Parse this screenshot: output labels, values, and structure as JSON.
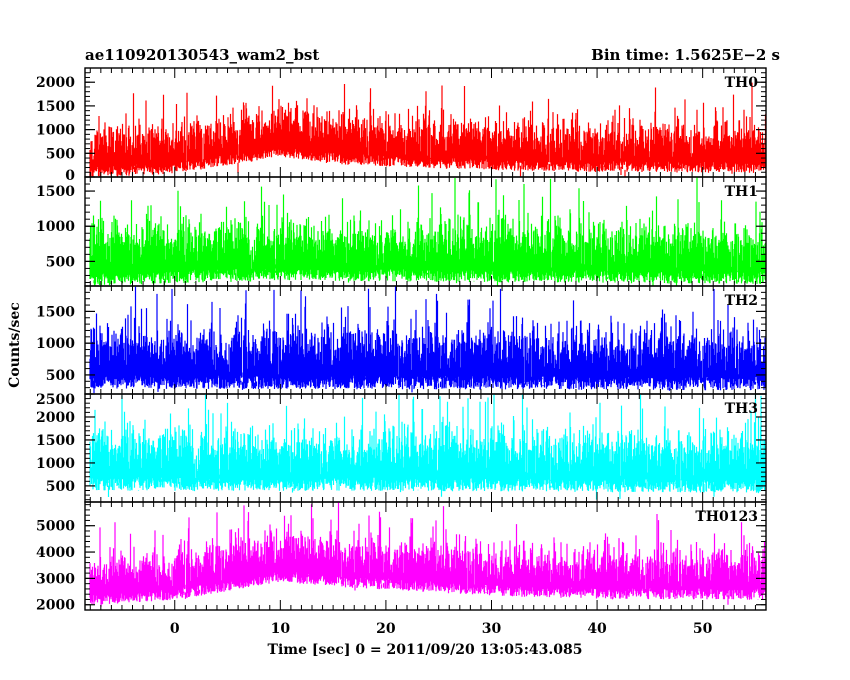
{
  "header": {
    "source_name": "ae110920130543_wam2_bst",
    "bin_time": "Bin time: 1.5625E−2 s"
  },
  "chart_data": {
    "type": "line",
    "xlabel": "Time [sec] 0 = 2011/09/20 13:05:43.085",
    "ylabel": "Counts/sec",
    "xlim": [
      -8.5,
      56
    ],
    "xticks": [
      0,
      10,
      20,
      30,
      40,
      50
    ],
    "series_x_range": [
      -8,
      56
    ],
    "panels": [
      {
        "name": "TH0",
        "color": "#ff0000",
        "ylim": [
          0,
          2300
        ],
        "yticks": [
          0,
          500,
          1000,
          1500,
          2000
        ],
        "level": [
          [
            -8,
            650
          ],
          [
            0,
            750
          ],
          [
            6,
            950
          ],
          [
            10,
            1100
          ],
          [
            15,
            950
          ],
          [
            20,
            900
          ],
          [
            30,
            820
          ],
          [
            40,
            780
          ],
          [
            56,
            760
          ]
        ],
        "noise_std": 260,
        "spike_max": 2300
      },
      {
        "name": "TH1",
        "color": "#00ff00",
        "ylim": [
          150,
          1700
        ],
        "yticks": [
          500,
          1000,
          1500
        ],
        "level": [
          [
            -8,
            700
          ],
          [
            5,
            750
          ],
          [
            10,
            780
          ],
          [
            20,
            760
          ],
          [
            56,
            720
          ]
        ],
        "noise_std": 210,
        "spike_max": 1700
      },
      {
        "name": "TH2",
        "color": "#0000ff",
        "ylim": [
          200,
          1900
        ],
        "yticks": [
          500,
          1000,
          1500
        ],
        "level": [
          [
            -8,
            900
          ],
          [
            20,
            900
          ],
          [
            56,
            880
          ]
        ],
        "noise_std": 240,
        "spike_max": 1900
      },
      {
        "name": "TH3",
        "color": "#00ffff",
        "ylim": [
          150,
          2500
        ],
        "yticks": [
          500,
          1000,
          1500,
          2000,
          2500
        ],
        "level": [
          [
            -8,
            1250
          ],
          [
            20,
            1250
          ],
          [
            56,
            1200
          ]
        ],
        "noise_std": 330,
        "spike_max": 2500
      },
      {
        "name": "TH0123",
        "color": "#ff00ff",
        "ylim": [
          1800,
          5900
        ],
        "yticks": [
          2000,
          3000,
          4000,
          5000
        ],
        "level": [
          [
            -8,
            3200
          ],
          [
            0,
            3400
          ],
          [
            6,
            3800
          ],
          [
            10,
            4100
          ],
          [
            15,
            3900
          ],
          [
            20,
            3800
          ],
          [
            30,
            3550
          ],
          [
            40,
            3450
          ],
          [
            56,
            3400
          ]
        ],
        "noise_std": 470,
        "spike_max": 5900
      }
    ]
  }
}
